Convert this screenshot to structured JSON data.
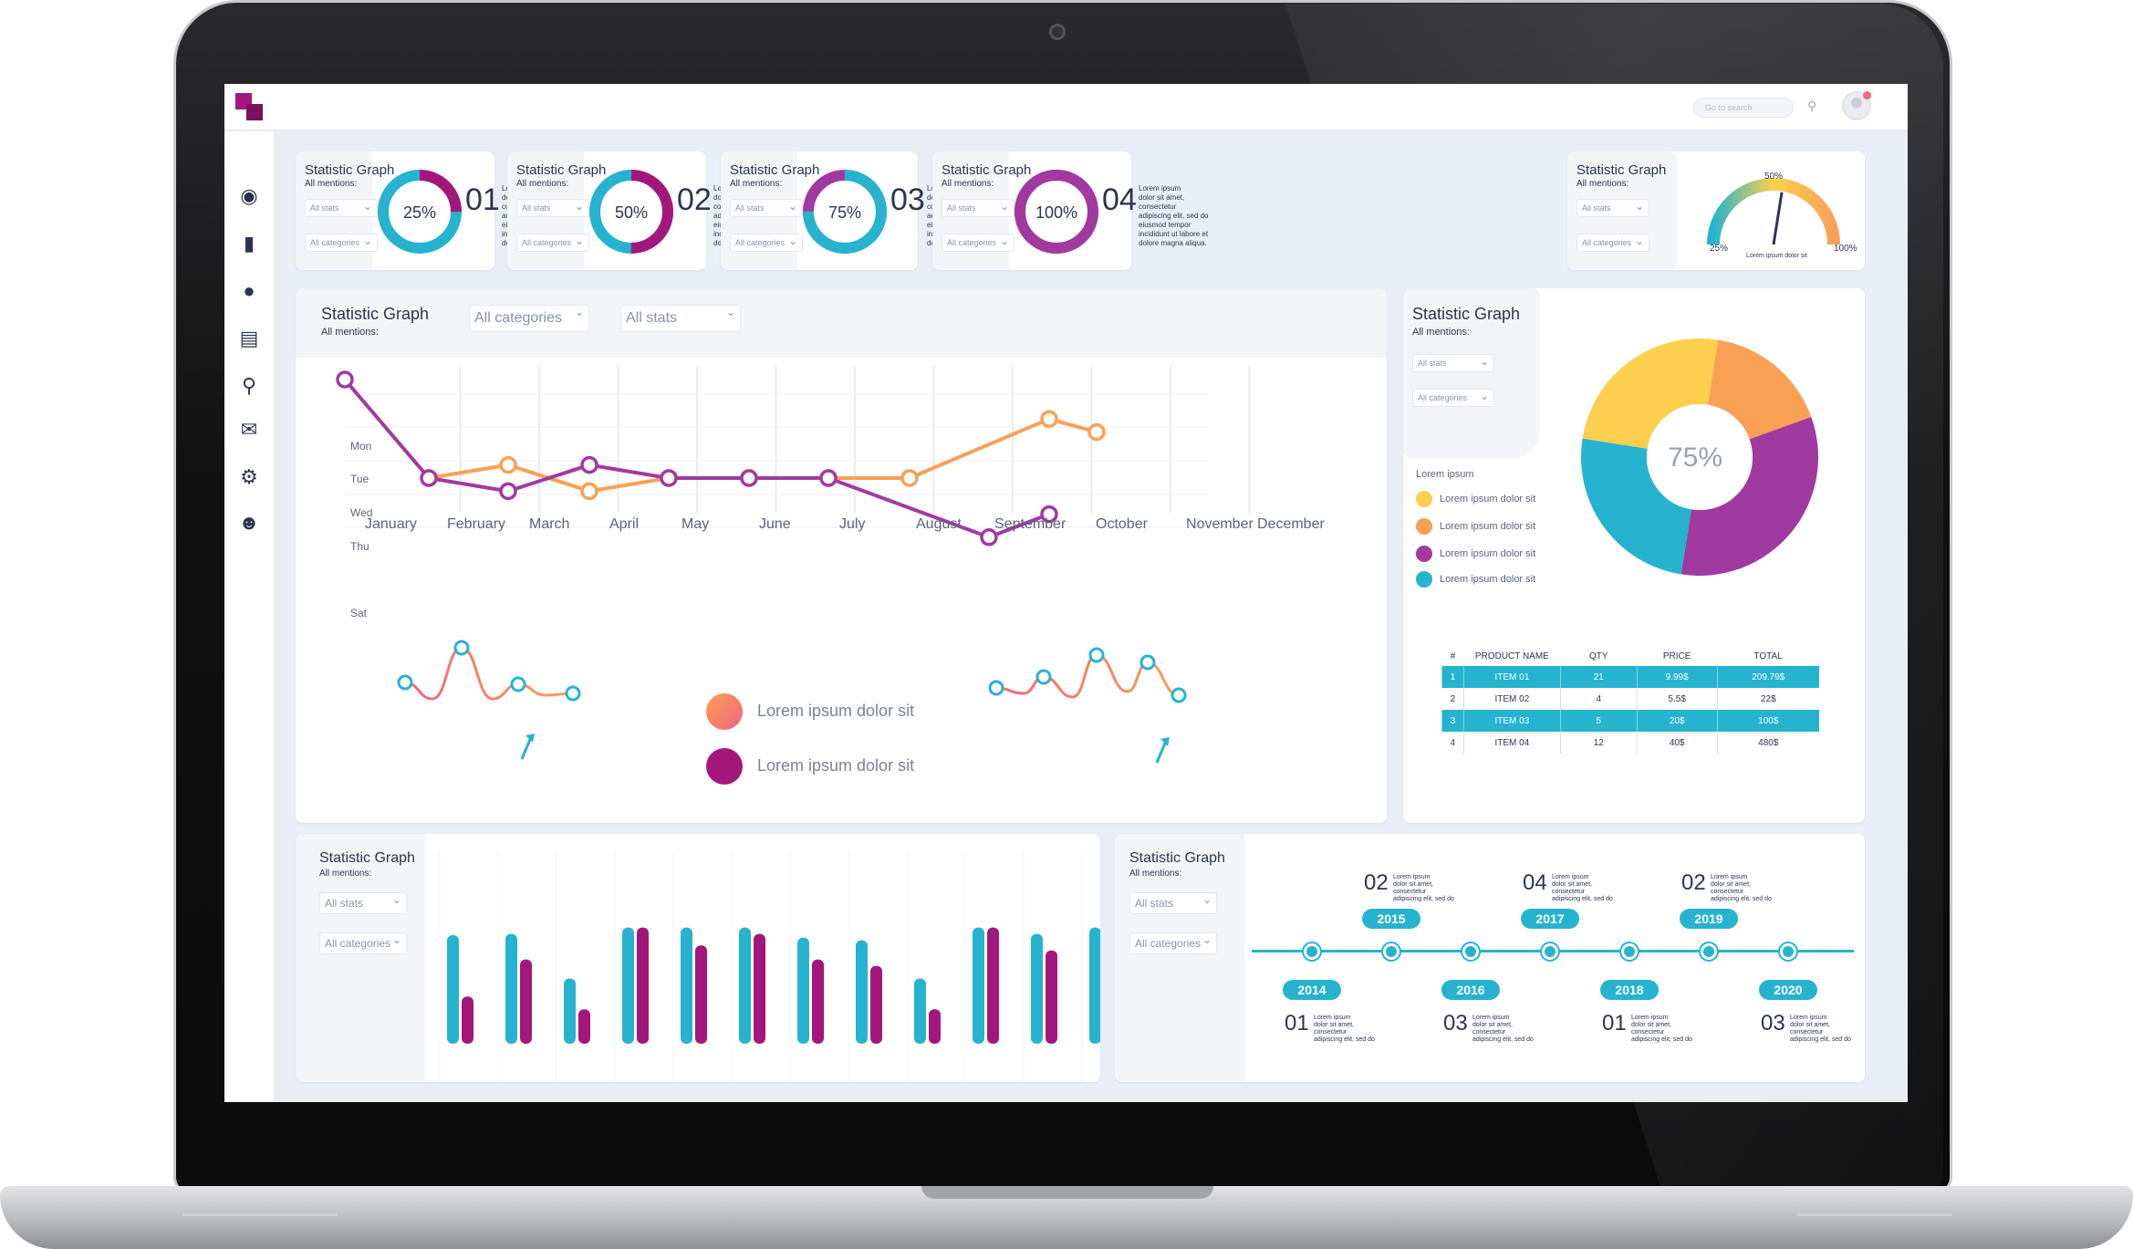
{
  "app": {
    "search_placeholder": "Go to search"
  },
  "sidebar": {
    "icons": [
      "user-icon",
      "bar-chart-icon",
      "chat-icon",
      "dashboard-icon",
      "search-icon",
      "mail-icon",
      "gear-icon",
      "user-star-icon"
    ]
  },
  "colors": {
    "cyan": "#26b3cf",
    "purple": "#a3177c",
    "magenta": "#a13aa0",
    "orange": "#f9a055",
    "pink": "#f2647d",
    "yellow": "#fcd04e",
    "navy": "#2c3550"
  },
  "stat_cards": [
    {
      "title": "Statistic Graph",
      "subtitle": "All mentions:",
      "dd1": "All stats",
      "dd2": "All categories",
      "percent_label": "25%",
      "percent": 25,
      "num": "01",
      "text": "Lorem ipsum\ndolor sit amet,\nconsectetur\nadipiscing elit, sed do\neiusmod tempor\nincididunt ut labore et\ndolore magna aliqua."
    },
    {
      "title": "Statistic Graph",
      "subtitle": "All mentions:",
      "dd1": "All stats",
      "dd2": "All categories",
      "percent_label": "50%",
      "percent": 50,
      "num": "02",
      "text": "Lorem ipsum\ndolor sit amet,\nconsectetur\nadipiscing elit, sed do\neiusmod tempor\nincididunt ut labore et\ndolore magna aliqua."
    },
    {
      "title": "Statistic Graph",
      "subtitle": "All mentions:",
      "dd1": "All stats",
      "dd2": "All categories",
      "percent_label": "75%",
      "percent": 75,
      "num": "03",
      "text": "Lorem ipsum\ndolor sit amet,\nconsectetur\nadipiscing elit, sed do\neiusmod tempor\nincididunt ut labore et\ndolore magna aliqua."
    },
    {
      "title": "Statistic Graph",
      "subtitle": "All mentions:",
      "dd1": "All stats",
      "dd2": "All categories",
      "percent_label": "100%",
      "percent": 100,
      "num": "04",
      "text": "Lorem ipsum\ndolor sit amet,\nconsectetur\nadipiscing elit, sed do\neiusmod tempor\nincididunt ut labore et\ndolore magna aliqua."
    }
  ],
  "gauge_card": {
    "title": "Statistic Graph",
    "subtitle": "All mentions:",
    "dd1": "All stats",
    "dd2": "All categories",
    "min": "25%",
    "mid": "50%",
    "max": "100%",
    "caption": "Lorem ipsum   dolor sit",
    "value": 55
  },
  "line_card": {
    "title": "Statistic Graph",
    "subtitle": "All mentions:",
    "dd1": "All categories",
    "dd2": "All stats",
    "legend": [
      "Lorem ipsum dolor sit",
      "Lorem ipsum dolor sit"
    ]
  },
  "pie_card": {
    "title": "Statistic Graph",
    "subtitle": "All mentions:",
    "dd1": "All stats",
    "dd2": "All categories",
    "center": "75%",
    "legend_title": "Lorem ipsum",
    "legend": [
      "Lorem ipsum  dolor sit",
      "Lorem ipsum  dolor sit",
      "Lorem ipsum  dolor sit",
      "Lorem ipsum  dolor sit"
    ]
  },
  "table": {
    "headers": [
      "#",
      "PRODUCT NAME",
      "QTY",
      "PRICE",
      "TOTAL"
    ],
    "rows": [
      [
        "1",
        "ITEM 01",
        "21",
        "9.99$",
        "209.79$"
      ],
      [
        "2",
        "ITEM 02",
        "4",
        "5.5$",
        "22$"
      ],
      [
        "3",
        "ITEM 03",
        "5",
        "20$",
        "100$"
      ],
      [
        "4",
        "ITEM 04",
        "12",
        "40$",
        "480$"
      ]
    ]
  },
  "bar_card": {
    "title": "Statistic Graph",
    "subtitle": "All mentions:",
    "dd1": "All stats",
    "dd2": "All categories"
  },
  "timeline_card": {
    "title": "Statistic Graph",
    "subtitle": "All mentions:",
    "dd1": "All stats",
    "dd2": "All categories",
    "top": [
      {
        "num": "02",
        "year": "2015"
      },
      {
        "num": "04",
        "year": "2017"
      },
      {
        "num": "02",
        "year": "2019"
      }
    ],
    "bottom": [
      {
        "num": "01",
        "year": "2014"
      },
      {
        "num": "03",
        "year": "2016"
      },
      {
        "num": "01",
        "year": "2018"
      },
      {
        "num": "03",
        "year": "2020"
      }
    ],
    "text": "Lorem ipsum\ndolor sit amet,\nconsectetur\nadipiscing elit, sed do"
  },
  "chart_data": [
    {
      "type": "line",
      "categories": [
        "January",
        "February",
        "March",
        "April",
        "May",
        "June",
        "July",
        "August",
        "September",
        "October",
        "November",
        "December"
      ],
      "y_categories": [
        "Mon",
        "Tue",
        "Wed",
        "Thu",
        "Sat"
      ],
      "series": [
        {
          "name": "",
          "color": "#f9a055",
          "values": [
            null,
            3.0,
            2.6,
            3.4,
            3.0,
            3.0,
            3.0,
            3.0,
            null,
            1.2,
            1.6,
            null
          ]
        },
        {
          "name": "",
          "color": "#a13aa0",
          "values": [
            0.0,
            3.0,
            3.4,
            2.6,
            3.0,
            3.0,
            3.0,
            null,
            4.8,
            4.1,
            null,
            null
          ]
        }
      ]
    },
    {
      "type": "pie",
      "values": [
        25,
        17,
        33,
        25
      ],
      "colors": [
        "#fcd04e",
        "#f9a055",
        "#a13aa0",
        "#26b3cf"
      ],
      "center_label": "75%"
    },
    {
      "type": "bar",
      "series": [
        {
          "name": "",
          "color": "#26b3cf",
          "values": [
            85,
            86,
            51,
            91,
            91,
            91,
            83,
            81,
            51,
            91,
            86,
            91
          ]
        },
        {
          "name": "",
          "color": "#a3177c",
          "values": [
            37,
            66,
            27,
            91,
            77,
            86,
            66,
            61,
            27,
            91,
            73,
            91
          ]
        }
      ]
    }
  ]
}
